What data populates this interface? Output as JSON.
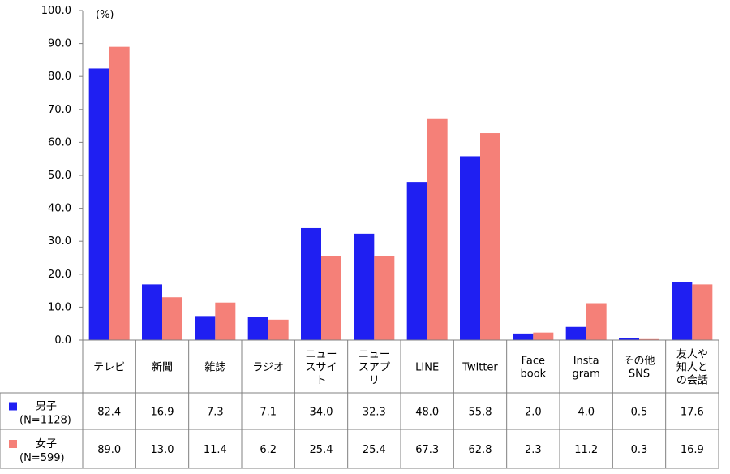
{
  "colors": {
    "male": "#1f1ff2",
    "female": "#f58078",
    "grid": "#d0d0d0",
    "border": "#808080"
  },
  "chart_data": {
    "type": "bar",
    "unit_label": "(%)",
    "ylim": [
      0,
      100
    ],
    "yticks": [
      "0.0",
      "10.0",
      "20.0",
      "30.0",
      "40.0",
      "50.0",
      "60.0",
      "70.0",
      "80.0",
      "90.0",
      "100.0"
    ],
    "categories": [
      [
        "テレビ"
      ],
      [
        "新聞"
      ],
      [
        "雑誌"
      ],
      [
        "ラジオ"
      ],
      [
        "ニュー",
        "スサイ",
        "ト"
      ],
      [
        "ニュー",
        "スアプ",
        "リ"
      ],
      [
        "LINE"
      ],
      [
        "Twitter"
      ],
      [
        "Face",
        "book"
      ],
      [
        "Insta",
        "gram"
      ],
      [
        "その他",
        "SNS"
      ],
      [
        "友人や",
        "知人と",
        "の会話"
      ]
    ],
    "series": [
      {
        "name": "男子",
        "sub": "(N=1128)",
        "values": [
          82.4,
          16.9,
          7.3,
          7.1,
          34.0,
          32.3,
          48.0,
          55.8,
          2.0,
          4.0,
          0.5,
          17.6
        ],
        "labels": [
          "82.4",
          "16.9",
          "7.3",
          "7.1",
          "34.0",
          "32.3",
          "48.0",
          "55.8",
          "2.0",
          "4.0",
          "0.5",
          "17.6"
        ]
      },
      {
        "name": "女子",
        "sub": "(N=599)",
        "values": [
          89.0,
          13.0,
          11.4,
          6.2,
          25.4,
          25.4,
          67.3,
          62.8,
          2.3,
          11.2,
          0.3,
          16.9
        ],
        "labels": [
          "89.0",
          "13.0",
          "11.4",
          "6.2",
          "25.4",
          "25.4",
          "67.3",
          "62.8",
          "2.3",
          "11.2",
          "0.3",
          "16.9"
        ]
      }
    ],
    "legend": "in-table-left",
    "grid": false
  }
}
